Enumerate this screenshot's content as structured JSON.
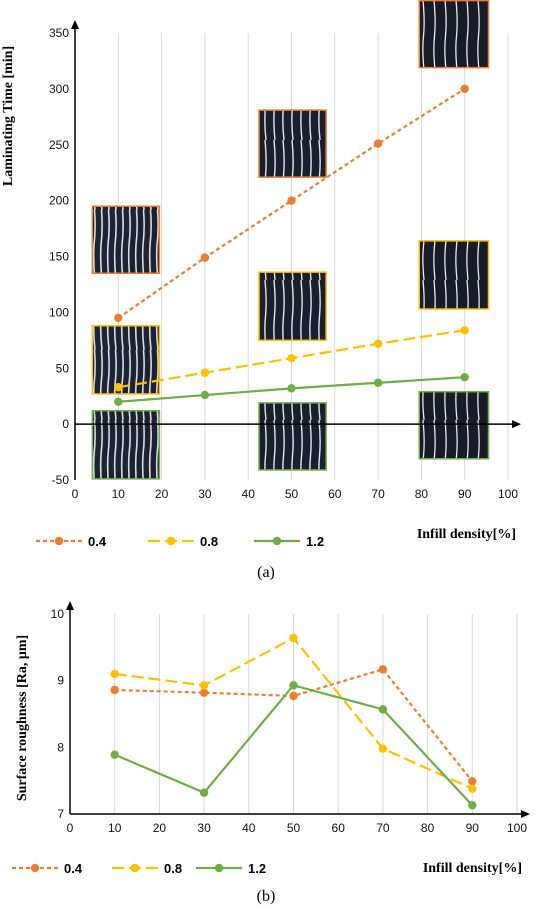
{
  "chart_data": [
    {
      "type": "line",
      "panel_label": "(a)",
      "xlabel": "Infill density[%]",
      "ylabel": "Laminating Time [min]",
      "xlim": [
        0,
        100
      ],
      "ylim": [
        -50,
        350
      ],
      "xticks": [
        0,
        10,
        20,
        30,
        40,
        50,
        60,
        70,
        80,
        90,
        100
      ],
      "yticks": [
        -50,
        0,
        50,
        100,
        150,
        200,
        250,
        300,
        350
      ],
      "grid": "vertical",
      "legend_position": "bottom",
      "series": [
        {
          "name": "0.4",
          "color": "#ED7D31",
          "dash": "short-dash",
          "x": [
            10,
            30,
            50,
            70,
            90
          ],
          "y": [
            95,
            149,
            200,
            251,
            300
          ]
        },
        {
          "name": "0.8",
          "color": "#FFC000",
          "dash": "long-dash",
          "x": [
            10,
            30,
            50,
            70,
            90
          ],
          "y": [
            33,
            46,
            59,
            72,
            84
          ]
        },
        {
          "name": "1.2",
          "color": "#70AD47",
          "dash": "solid",
          "x": [
            10,
            30,
            50,
            70,
            90
          ],
          "y": [
            20,
            26,
            32,
            37,
            42
          ]
        }
      ],
      "inset_images": [
        {
          "description": "sample photo (0.4, 10%)",
          "border": "#ED7D31",
          "x_range": [
            4,
            19.5
          ],
          "y_range": [
            135,
            195
          ]
        },
        {
          "description": "sample photo (0.4, 50%)",
          "border": "#ED7D31",
          "x_range": [
            42.5,
            58
          ],
          "y_range": [
            221,
            281
          ]
        },
        {
          "description": "sample photo (0.4, 90%)",
          "border": "#ED7D31",
          "x_range": [
            79.5,
            95.5
          ],
          "y_range": [
            319,
            379
          ]
        },
        {
          "description": "sample photo (0.8, 10%)",
          "border": "#FFC000",
          "x_range": [
            4,
            19.5
          ],
          "y_range": [
            27,
            88
          ]
        },
        {
          "description": "sample photo (0.8, 50%)",
          "border": "#FFC000",
          "x_range": [
            42.5,
            58
          ],
          "y_range": [
            75,
            136
          ]
        },
        {
          "description": "sample photo (0.8, 90%)",
          "border": "#FFC000",
          "x_range": [
            79.5,
            95.5
          ],
          "y_range": [
            103,
            164
          ]
        },
        {
          "description": "sample photo (1.2, 10%)",
          "border": "#70AD47",
          "x_range": [
            4,
            19.5
          ],
          "y_range": [
            -49,
            12
          ]
        },
        {
          "description": "sample photo (1.2, 50%)",
          "border": "#70AD47",
          "x_range": [
            42.5,
            58
          ],
          "y_range": [
            -41,
            19
          ]
        },
        {
          "description": "sample photo (1.2, 90%)",
          "border": "#70AD47",
          "x_range": [
            79.5,
            95.5
          ],
          "y_range": [
            -31,
            29
          ]
        }
      ]
    },
    {
      "type": "line",
      "panel_label": "(b)",
      "xlabel": "Infill density[%]",
      "ylabel": "Surface roughness [Ra, μm]",
      "xlim": [
        0,
        100
      ],
      "ylim": [
        7,
        10
      ],
      "xticks": [
        0,
        10,
        20,
        30,
        40,
        50,
        60,
        70,
        80,
        90,
        100
      ],
      "yticks": [
        7,
        8,
        9,
        10
      ],
      "grid": "vertical",
      "legend_position": "bottom",
      "series": [
        {
          "name": "0.4",
          "color": "#ED7D31",
          "dash": "short-dash",
          "x": [
            10,
            30,
            50,
            70,
            90
          ],
          "y": [
            8.86,
            8.82,
            8.77,
            9.17,
            7.49
          ]
        },
        {
          "name": "0.8",
          "color": "#FFC000",
          "dash": "long-dash",
          "x": [
            10,
            30,
            50,
            70,
            90
          ],
          "y": [
            9.1,
            8.93,
            9.64,
            7.98,
            7.38
          ]
        },
        {
          "name": "1.2",
          "color": "#70AD47",
          "dash": "solid",
          "x": [
            10,
            30,
            50,
            70,
            90
          ],
          "y": [
            7.89,
            7.32,
            8.93,
            8.57,
            7.13
          ]
        }
      ]
    }
  ]
}
